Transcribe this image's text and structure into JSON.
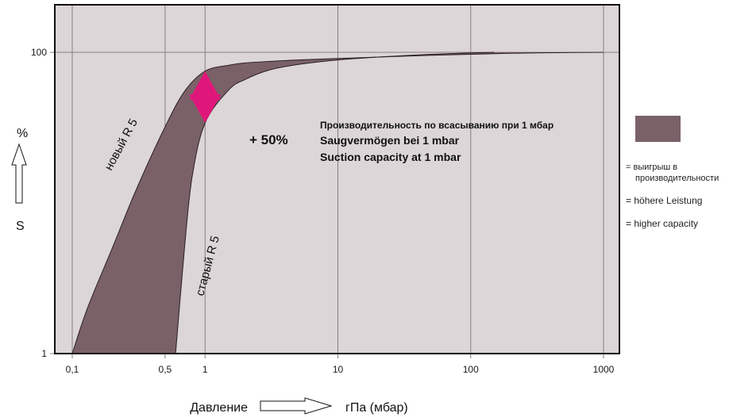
{
  "chart_data": {
    "type": "area",
    "x_scale": "log",
    "y_scale": "log",
    "xlim": [
      0.08,
      1500
    ],
    "ylim": [
      1,
      130
    ],
    "x_ticks": [
      {
        "value": 0.1,
        "label": "0,1"
      },
      {
        "value": 0.5,
        "label": "0,5"
      },
      {
        "value": 1,
        "label": "1"
      },
      {
        "value": 10,
        "label": "10"
      },
      {
        "value": 100,
        "label": "100"
      },
      {
        "value": 1000,
        "label": "1000"
      }
    ],
    "y_ticks": [
      {
        "value": 1,
        "label": "1"
      },
      {
        "value": 100,
        "label": "100"
      }
    ],
    "grid": true,
    "xlabel": "Давление",
    "xunit": "гПа (мбар)",
    "ylabel_unit": "%",
    "ylabel": "S",
    "series": [
      {
        "name": "новый R 5",
        "x": [
          0.1,
          0.13,
          0.2,
          0.3,
          0.5,
          0.7,
          1,
          1.5,
          2,
          3,
          5,
          10,
          20,
          50,
          100,
          200,
          500,
          1000
        ],
        "y": [
          1,
          2,
          5,
          12,
          32,
          55,
          75,
          82,
          85,
          87,
          89,
          91,
          93,
          95.5,
          97,
          98.5,
          99.5,
          100
        ]
      },
      {
        "name": "старый R 5",
        "x": [
          0.6,
          0.7,
          0.8,
          1,
          1.5,
          2,
          3,
          5,
          10,
          20,
          50,
          100,
          150
        ],
        "y": [
          1,
          5,
          15,
          34,
          56,
          66,
          76,
          83,
          89,
          93,
          97,
          99,
          100
        ]
      }
    ],
    "annotations": {
      "gain": "+ 50%",
      "suction_ru": "Производительность по всасыванию при 1 мбар",
      "suction_de": "Saugvermögen bei 1 mbar",
      "suction_en": "Suction capacity at 1 mbar",
      "arrow_x": 1,
      "arrow_y_low": 34,
      "arrow_y_high": 75
    },
    "legend": {
      "position": "right",
      "swatch_color": "#7a6168",
      "lines_ru": [
        "= выигрыш в",
        "производительности"
      ],
      "line_de": "= höhere Leistung",
      "line_en": "= higher capacity"
    },
    "colors": {
      "plot_bg": "#dcd6d8",
      "band_fill": "#7a6168",
      "grid": "#8a7d82",
      "arrow": "#e0177a"
    }
  }
}
